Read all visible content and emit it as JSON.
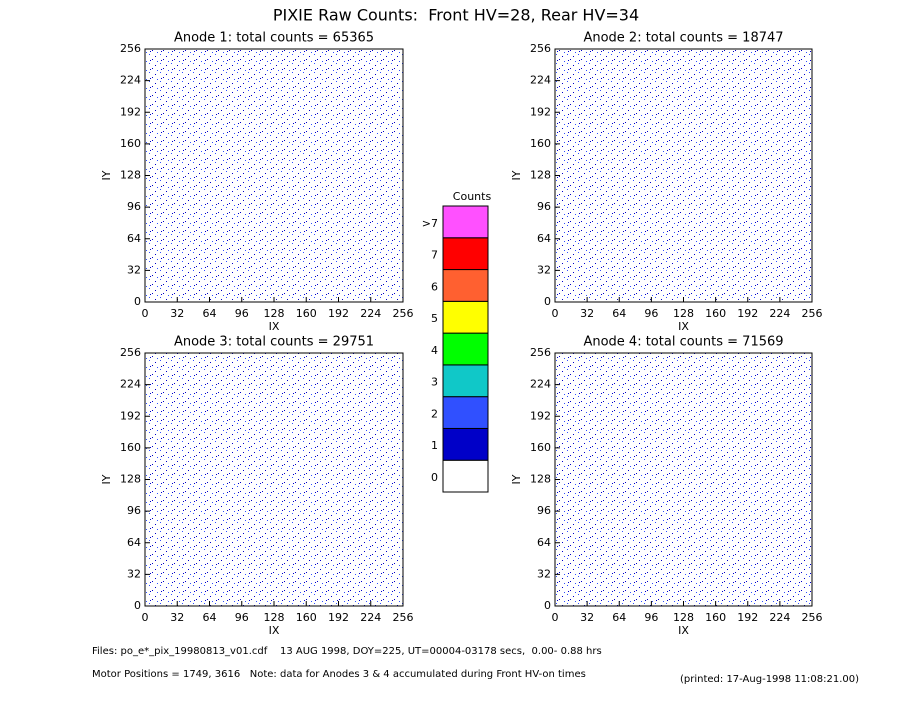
{
  "title": "PIXIE Raw Counts:  Front HV=28, Rear HV=34",
  "chart_data": [
    {
      "type": "heatmap",
      "title": "Anode 1: total counts = 65365",
      "xlabel": "IX",
      "ylabel": "IY",
      "xlim": [
        0,
        256
      ],
      "ylim": [
        0,
        256
      ],
      "xticks": [
        0,
        32,
        64,
        96,
        128,
        160,
        192,
        224,
        256
      ],
      "yticks": [
        0,
        32,
        64,
        96,
        128,
        160,
        192,
        224,
        256
      ]
    },
    {
      "type": "heatmap",
      "title": "Anode 2: total counts = 18747",
      "xlabel": "IX",
      "ylabel": "IY",
      "xlim": [
        0,
        256
      ],
      "ylim": [
        0,
        256
      ],
      "xticks": [
        0,
        32,
        64,
        96,
        128,
        160,
        192,
        224,
        256
      ],
      "yticks": [
        0,
        32,
        64,
        96,
        128,
        160,
        192,
        224,
        256
      ]
    },
    {
      "type": "heatmap",
      "title": "Anode 3: total counts = 29751",
      "xlabel": "IX",
      "ylabel": "IY",
      "xlim": [
        0,
        256
      ],
      "ylim": [
        0,
        256
      ],
      "xticks": [
        0,
        32,
        64,
        96,
        128,
        160,
        192,
        224,
        256
      ],
      "yticks": [
        0,
        32,
        64,
        96,
        128,
        160,
        192,
        224,
        256
      ]
    },
    {
      "type": "heatmap",
      "title": "Anode 4: total counts = 71569",
      "xlabel": "IX",
      "ylabel": "IY",
      "xlim": [
        0,
        256
      ],
      "ylim": [
        0,
        256
      ],
      "xticks": [
        0,
        32,
        64,
        96,
        128,
        160,
        192,
        224,
        256
      ],
      "yticks": [
        0,
        32,
        64,
        96,
        128,
        160,
        192,
        224,
        256
      ]
    }
  ],
  "colorbar": {
    "title": "Counts",
    "categories": [
      "0",
      "1",
      "2",
      "3",
      "4",
      "5",
      "6",
      "7",
      ">7"
    ],
    "colors": [
      "#ffffff",
      "#0000c8",
      "#3050ff",
      "#10c8c8",
      "#00ff00",
      "#ffff00",
      "#ff6030",
      "#ff0000",
      "#ff50ff"
    ]
  },
  "footer": {
    "files": "Files: po_e*_pix_19980813_v01.cdf    13 AUG 1998, DOY=225, UT=00004-03178 secs,  0.00- 0.88 hrs",
    "motor": "Motor Positions = 1749, 3616   Note: data for Anodes 3 & 4 accumulated during Front HV-on times",
    "printed": "(printed: 17-Aug-1998 11:08:21.00)"
  }
}
